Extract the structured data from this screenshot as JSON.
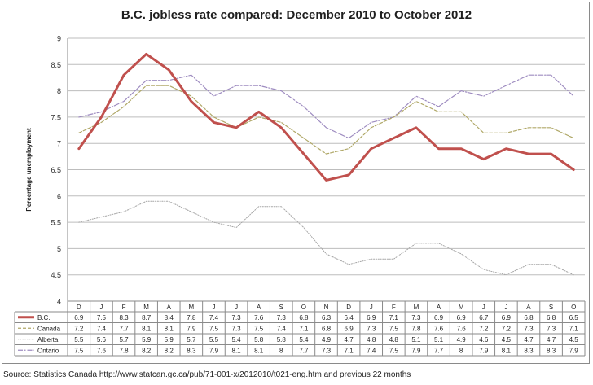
{
  "title": "B.C. jobless rate compared: December 2010 to October 2012",
  "source": "Source: Statistics Canada http://www.statcan.gc.ca/pub/71-001-x/2012010/t021-eng.htm and previous 22 months",
  "chart_data": {
    "type": "line",
    "title": "B.C. jobless rate compared: December 2010 to October 2012",
    "ylabel": "Percentage unemployment",
    "xlabel": "",
    "ylim": [
      4,
      9
    ],
    "yticks": [
      "4",
      "4.5",
      "5",
      "5.5",
      "6",
      "6.5",
      "7",
      "7.5",
      "8",
      "8.5",
      "9"
    ],
    "grid": true,
    "legend": "data-table",
    "categories": [
      "D",
      "J",
      "F",
      "M",
      "A",
      "M",
      "J",
      "J",
      "A",
      "S",
      "O",
      "N",
      "D",
      "J",
      "F",
      "M",
      "A",
      "M",
      "J",
      "J",
      "A",
      "S",
      "O"
    ],
    "series": [
      {
        "name": "B.C.",
        "color": "#c0504d",
        "style": "solid-thick",
        "values": [
          6.9,
          7.5,
          8.3,
          8.7,
          8.4,
          7.8,
          7.4,
          7.3,
          7.6,
          7.3,
          6.8,
          6.3,
          6.4,
          6.9,
          7.1,
          7.3,
          6.9,
          6.9,
          6.7,
          6.9,
          6.8,
          6.8,
          6.5
        ]
      },
      {
        "name": "Canada",
        "color": "#b0a868",
        "style": "dashed",
        "values": [
          7.2,
          7.4,
          7.7,
          8.1,
          8.1,
          7.9,
          7.5,
          7.3,
          7.5,
          7.4,
          7.1,
          6.8,
          6.9,
          7.3,
          7.5,
          7.8,
          7.6,
          7.6,
          7.2,
          7.2,
          7.3,
          7.3,
          7.1
        ]
      },
      {
        "name": "Alberta",
        "color": "#a6a6a6",
        "style": "dotted",
        "values": [
          5.5,
          5.6,
          5.7,
          5.9,
          5.9,
          5.7,
          5.5,
          5.4,
          5.8,
          5.8,
          5.4,
          4.9,
          4.7,
          4.8,
          4.8,
          5.1,
          5.1,
          4.9,
          4.6,
          4.5,
          4.7,
          4.7,
          4.5
        ]
      },
      {
        "name": "Ontario",
        "color": "#9e8cc0",
        "style": "dashdot",
        "values": [
          7.5,
          7.6,
          7.8,
          8.2,
          8.2,
          8.3,
          7.9,
          8.1,
          8.1,
          8,
          7.7,
          7.3,
          7.1,
          7.4,
          7.5,
          7.9,
          7.7,
          8,
          7.9,
          8.1,
          8.3,
          8.3,
          7.9
        ]
      }
    ]
  }
}
